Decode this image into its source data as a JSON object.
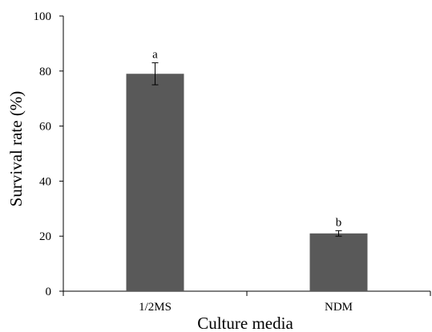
{
  "chart_data": {
    "type": "bar",
    "title": "",
    "xlabel": "Culture media",
    "ylabel": "Survival rate (%)",
    "categories": [
      "1/2MS",
      "NDM"
    ],
    "values": [
      79,
      21
    ],
    "error": [
      4,
      1
    ],
    "significance_labels": [
      "a",
      "b"
    ],
    "ylim": [
      0,
      100
    ],
    "yticks": [
      0,
      20,
      40,
      60,
      80,
      100
    ],
    "grid": false,
    "legend": "none",
    "bar_color": "#595959"
  }
}
